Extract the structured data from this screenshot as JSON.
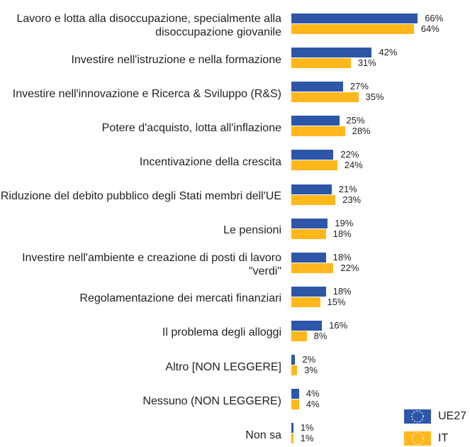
{
  "chart_data": {
    "type": "bar",
    "orientation": "horizontal",
    "categories": [
      "Lavoro e lotta alla disoccupazione, specialmente alla disoccupazione giovanile",
      "Investire nell'istruzione e nella formazione",
      "Investire nell'innovazione e Ricerca & Sviluppo (R&S)",
      "Potere d'acquisto, lotta all'inflazione",
      "Incentivazione della crescita",
      "Riduzione del debito pubblico degli Stati membri dell'UE",
      "Le pensioni",
      "Investire nell'ambiente e creazione di posti di lavoro \"verdi\"",
      "Regolamentazione dei mercati finanziari",
      "Il problema degli alloggi",
      "Altro [NON LEGGERE]",
      "Nessuno (NON LEGGERE)",
      "Non sa"
    ],
    "series": [
      {
        "name": "UE27",
        "color": "#2e56a8",
        "values": [
          66,
          42,
          27,
          25,
          22,
          21,
          19,
          18,
          18,
          16,
          2,
          4,
          1
        ],
        "value_labels": [
          "66%",
          "42%",
          "27%",
          "25%",
          "22%",
          "21%",
          "19%",
          "18%",
          "18%",
          "16%",
          "2%",
          "4%",
          "1%"
        ]
      },
      {
        "name": "IT",
        "color": "#ffb71b",
        "values": [
          64,
          31,
          35,
          28,
          24,
          23,
          18,
          22,
          15,
          8,
          3,
          4,
          1
        ],
        "value_labels": [
          "64%",
          "31%",
          "35%",
          "28%",
          "24%",
          "23%",
          "18%",
          "22%",
          "15%",
          "8%",
          "3%",
          "4%",
          "1%"
        ]
      }
    ],
    "legend": "bottom-right"
  }
}
